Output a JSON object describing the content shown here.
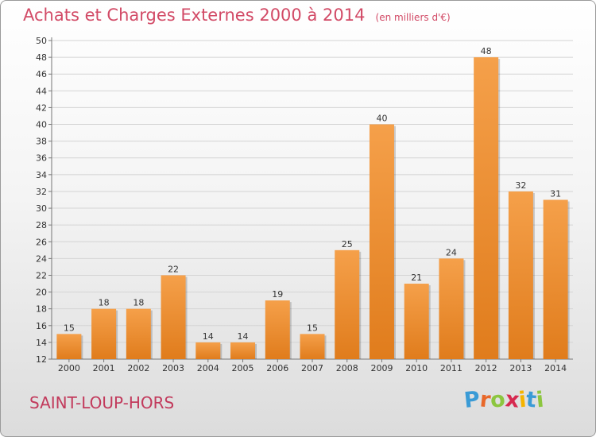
{
  "title": "Achats et Charges Externes 2000 à 2014",
  "unit_note": "(en milliers d'€)",
  "place": "SAINT-LOUP-HORS",
  "logo": {
    "text": "Proxiti",
    "letters": [
      {
        "ch": "P",
        "color": "#3a9bd6"
      },
      {
        "ch": "r",
        "color": "#e8682a"
      },
      {
        "ch": "o",
        "color": "#8cc63f"
      },
      {
        "ch": "x",
        "color": "#d6294f"
      },
      {
        "ch": "i",
        "color": "#f5b400"
      },
      {
        "ch": "t",
        "color": "#3a9bd6"
      },
      {
        "ch": "i",
        "color": "#8cc63f"
      }
    ]
  },
  "chart_data": {
    "type": "bar",
    "categories": [
      "2000",
      "2001",
      "2002",
      "2003",
      "2004",
      "2005",
      "2006",
      "2007",
      "2008",
      "2009",
      "2010",
      "2011",
      "2012",
      "2013",
      "2014"
    ],
    "values": [
      15,
      18,
      18,
      22,
      14,
      14,
      19,
      15,
      25,
      40,
      21,
      24,
      48,
      32,
      31
    ],
    "ylim": [
      12,
      50
    ],
    "yticks": [
      12,
      14,
      16,
      18,
      20,
      22,
      24,
      26,
      28,
      30,
      32,
      34,
      36,
      38,
      40,
      42,
      44,
      46,
      48,
      50
    ],
    "grid": true,
    "bar_color": "#f5a04a",
    "bar_color_dark": "#e07c1c"
  }
}
